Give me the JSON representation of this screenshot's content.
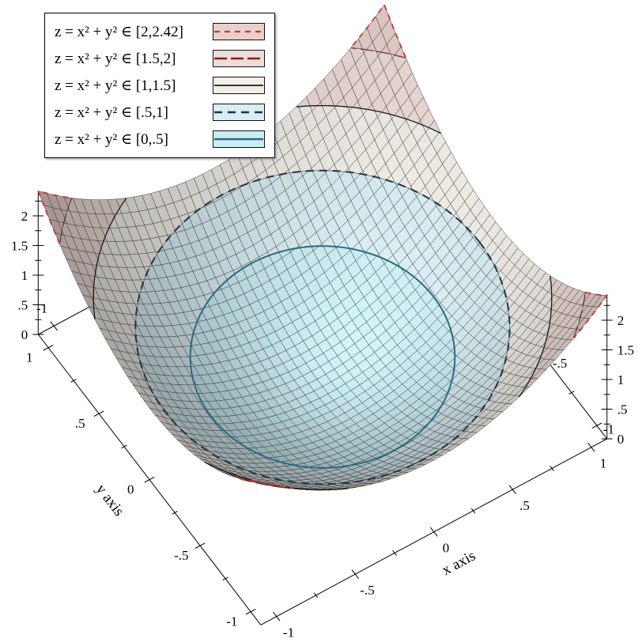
{
  "chart_data": {
    "type": "3d-surface",
    "title": "",
    "function_label": "z = x² + y²",
    "x_domain": [
      -1.1,
      1.1
    ],
    "y_domain": [
      -1.1,
      1.1
    ],
    "z_range": [
      0,
      2.42
    ],
    "samples": 40,
    "grid": true,
    "mesh_line": {
      "color": "#3a3a3a",
      "width": 0.5
    },
    "bands": [
      {
        "label": "z = x² + y² ∈ [0,.5]",
        "zmin": 0,
        "zmax": 0.5,
        "fill": "#cbeef3",
        "line": {
          "color": "#2b6a80",
          "width": 2,
          "dash": ""
        }
      },
      {
        "label": "z = x² + y² ∈ [.5,1]",
        "zmin": 0.5,
        "zmax": 1,
        "fill": "#d9eef3",
        "line": {
          "color": "#1f3346",
          "width": 2,
          "dash": "10,7"
        }
      },
      {
        "label": "z = x² + y² ∈ [1,1.5]",
        "zmin": 1,
        "zmax": 1.5,
        "fill": "#f2efe9",
        "line": {
          "color": "#1a1a1a",
          "width": 1.3,
          "dash": ""
        }
      },
      {
        "label": "z = x² + y² ∈ [1.5,2]",
        "zmin": 1.5,
        "zmax": 2,
        "fill": "#eedcd8",
        "line": {
          "color": "#7c1f1f",
          "width": 2,
          "dash": "16,5"
        }
      },
      {
        "label": "z = x² + y² ∈ [2,2.42]",
        "zmin": 2,
        "zmax": 2.42,
        "fill": "#ead0cc",
        "line": {
          "color": "#c03a3a",
          "width": 1.8,
          "dash": "7,6"
        }
      }
    ],
    "axes": {
      "x": {
        "title": "x axis",
        "tick_values": [
          -1,
          -0.5,
          0,
          0.5,
          1
        ],
        "tick_labels": [
          "-1",
          "-.5",
          "0",
          ".5",
          "1"
        ],
        "minor_step": 0.25
      },
      "y": {
        "title": "y axis",
        "tick_values": [
          -1,
          -0.5,
          0,
          0.5,
          1
        ],
        "tick_labels": [
          "-1",
          "-.5",
          "0",
          ".5",
          "1"
        ],
        "minor_step": 0.25
      },
      "z": {
        "title": "",
        "tick_values": [
          0,
          0.5,
          1,
          1.5,
          2
        ],
        "tick_labels": [
          "0",
          ".5",
          "1",
          "1.5",
          "2"
        ],
        "minor_step": 0.25
      }
    },
    "legend": {
      "position": "top-left"
    }
  }
}
